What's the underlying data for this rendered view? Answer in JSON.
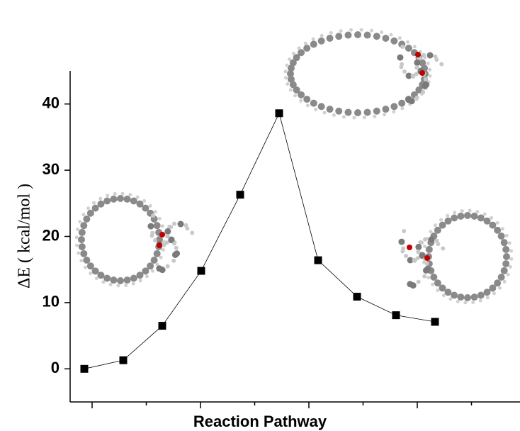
{
  "chart_data": {
    "type": "line",
    "x_label": "Reaction Pathway",
    "y_label": "ΔE ( kcal/mol )",
    "categories": [
      null,
      null,
      null,
      null,
      null,
      null,
      null,
      null,
      null,
      null
    ],
    "series": [
      {
        "color": "#000000",
        "values": [
          0,
          1.3,
          6.5,
          14.8,
          26.3,
          38.6,
          16.4,
          10.9,
          8.1,
          7.1
        ]
      }
    ],
    "ylim": [
      -5,
      45
    ],
    "yticks": [
      0,
      10,
      20,
      30,
      40
    ]
  }
}
